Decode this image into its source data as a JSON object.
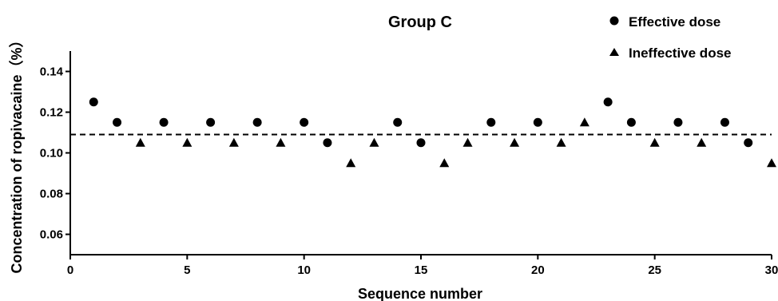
{
  "chart_data": {
    "type": "scatter",
    "title": "Group C",
    "xlabel": "Sequence number",
    "ylabel": "Concentration of ropivacaine（%）",
    "xlim": [
      0,
      30
    ],
    "ylim": [
      0.05,
      0.15
    ],
    "x_ticks": [
      0,
      5,
      10,
      15,
      20,
      25,
      30
    ],
    "y_ticks": [
      0.06,
      0.08,
      0.1,
      0.12,
      0.14
    ],
    "reference_line": {
      "y": 0.109,
      "style": "dashed"
    },
    "legend_position": "top-right",
    "series": [
      {
        "name": "Effective dose",
        "marker": "circle",
        "points": [
          [
            1,
            0.125
          ],
          [
            2,
            0.115
          ],
          [
            4,
            0.115
          ],
          [
            6,
            0.115
          ],
          [
            8,
            0.115
          ],
          [
            10,
            0.115
          ],
          [
            11,
            0.105
          ],
          [
            14,
            0.115
          ],
          [
            15,
            0.105
          ],
          [
            18,
            0.115
          ],
          [
            20,
            0.115
          ],
          [
            23,
            0.125
          ],
          [
            24,
            0.115
          ],
          [
            26,
            0.115
          ],
          [
            28,
            0.115
          ],
          [
            29,
            0.105
          ]
        ]
      },
      {
        "name": "Ineffective dose",
        "marker": "triangle",
        "points": [
          [
            3,
            0.105
          ],
          [
            5,
            0.105
          ],
          [
            7,
            0.105
          ],
          [
            9,
            0.105
          ],
          [
            12,
            0.095
          ],
          [
            13,
            0.105
          ],
          [
            16,
            0.095
          ],
          [
            17,
            0.105
          ],
          [
            19,
            0.105
          ],
          [
            21,
            0.105
          ],
          [
            22,
            0.115
          ],
          [
            25,
            0.105
          ],
          [
            27,
            0.105
          ],
          [
            30,
            0.095
          ]
        ]
      }
    ]
  }
}
